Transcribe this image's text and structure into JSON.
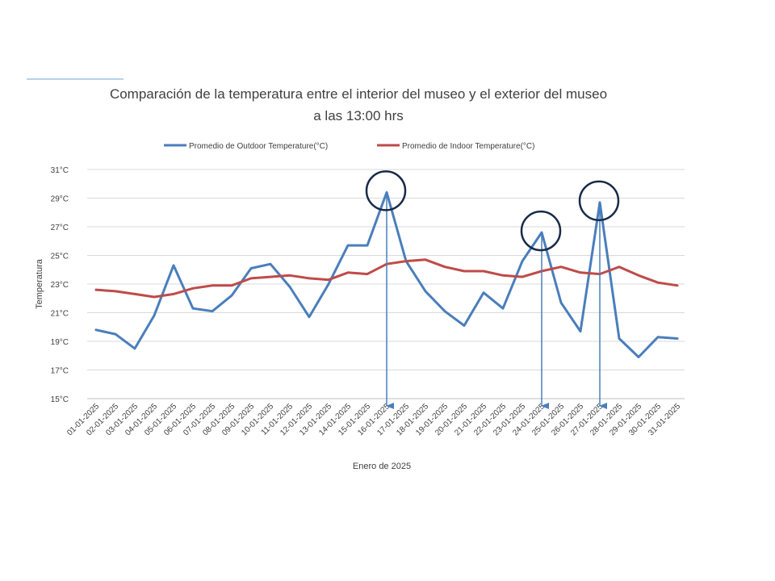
{
  "chart_data": {
    "type": "line",
    "title_line1": "Comparación de la temperatura entre el interior del museo y el exterior del museo",
    "title_line2": "a las 13:00 hrs",
    "xlabel": "Enero de 2025",
    "ylabel": "Temperatura",
    "ylim": [
      15,
      31
    ],
    "yticks": [
      "15°C",
      "17°C",
      "19°C",
      "21°C",
      "23°C",
      "25°C",
      "27°C",
      "29°C",
      "31°C"
    ],
    "grid": true,
    "legend_position": "top",
    "categories": [
      "01-01-2025",
      "02-01-2025",
      "03-01-2025",
      "04-01-2025",
      "05-01-2025",
      "06-01-2025",
      "07-01-2025",
      "08-01-2025",
      "09-01-2025",
      "10-01-2025",
      "11-01-2025",
      "12-01-2025",
      "13-01-2025",
      "14-01-2025",
      "15-01-2025",
      "16-01-2025",
      "17-01-2025",
      "18-01-2025",
      "19-01-2025",
      "20-01-2025",
      "21-01-2025",
      "22-01-2025",
      "23-01-2025",
      "24-01-2025",
      "25-01-2025",
      "26-01-2025",
      "27-01-2025",
      "28-01-2025",
      "29-01-2025",
      "30-01-2025",
      "31-01-2025"
    ],
    "series": [
      {
        "name": "Promedio de Outdoor Temperature(°C)",
        "color": "#4a7ebb",
        "values": [
          19.8,
          19.5,
          18.5,
          20.8,
          24.3,
          21.3,
          21.1,
          22.2,
          24.1,
          24.4,
          22.8,
          20.7,
          23.0,
          25.7,
          25.7,
          29.4,
          24.6,
          22.5,
          21.1,
          20.1,
          22.4,
          21.3,
          24.6,
          26.6,
          21.7,
          19.7,
          28.7,
          19.2,
          17.9,
          19.3,
          19.2
        ]
      },
      {
        "name": "Promedio de Indoor Temperature(°C)",
        "color": "#be4b48",
        "values": [
          22.6,
          22.5,
          22.3,
          22.1,
          22.3,
          22.7,
          22.9,
          22.9,
          23.4,
          23.5,
          23.6,
          23.4,
          23.3,
          23.8,
          23.7,
          24.4,
          24.6,
          24.7,
          24.2,
          23.9,
          23.9,
          23.6,
          23.5,
          23.9,
          24.2,
          23.8,
          23.7,
          24.2,
          23.6,
          23.1,
          22.9
        ]
      }
    ],
    "annotations": {
      "highlighted_days": [
        "16-01-2025",
        "24-01-2025",
        "27-01-2025"
      ],
      "highlight_color": "#1a2a48",
      "arrow_color": "#4a7ebb",
      "accent_line_color": "#9dc3e6"
    }
  }
}
